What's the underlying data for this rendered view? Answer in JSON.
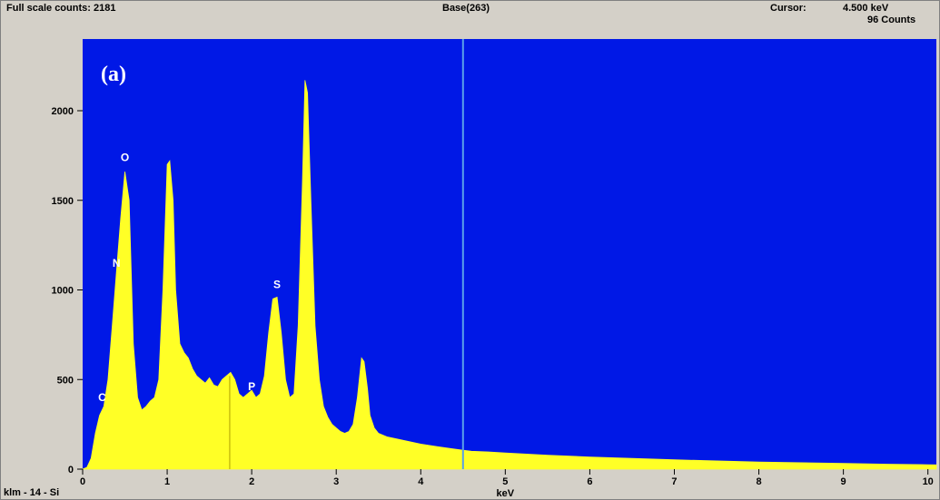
{
  "header": {
    "full_scale": "Full scale counts: 2181",
    "base": "Base(263)",
    "cursor_label": "Cursor:",
    "cursor_energy": "4.500 keV",
    "cursor_counts": "96 Counts"
  },
  "footer": {
    "sample": "klm - 14 - Si"
  },
  "colors": {
    "plot_background": "#0018e6",
    "spectrum_fill": "#ffff26",
    "cursor_line": "#5aa0e8",
    "frame": "#d4d0c8"
  },
  "chart_data": {
    "type": "area",
    "xlabel": "keV",
    "panel_label": "(a)",
    "xlim": [
      0,
      10.1
    ],
    "ylim": [
      0,
      2400
    ],
    "xticks": [
      0,
      1,
      2,
      3,
      4,
      5,
      6,
      7,
      8,
      9,
      10
    ],
    "yticks": [
      0,
      500,
      1000,
      1500,
      2000
    ],
    "cursor_x": 4.5,
    "marker_x": 1.74,
    "peak_labels": [
      {
        "text": "C",
        "x": 0.23,
        "y": 380
      },
      {
        "text": "O",
        "x": 0.5,
        "y": 1720
      },
      {
        "text": "N",
        "x": 0.4,
        "y": 1130
      },
      {
        "text": "S",
        "x": 2.3,
        "y": 1010
      },
      {
        "text": "P",
        "x": 2.0,
        "y": 440
      }
    ],
    "series": [
      {
        "x": [
          0.0,
          0.05,
          0.1,
          0.15,
          0.2,
          0.25,
          0.3,
          0.35,
          0.4,
          0.45,
          0.5,
          0.55,
          0.6,
          0.65,
          0.7,
          0.75,
          0.8,
          0.85,
          0.9,
          0.95,
          1.0,
          1.03,
          1.07,
          1.1,
          1.15,
          1.2,
          1.25,
          1.3,
          1.35,
          1.4,
          1.45,
          1.5,
          1.55,
          1.6,
          1.65,
          1.7,
          1.75,
          1.8,
          1.85,
          1.9,
          1.95,
          2.0,
          2.05,
          2.1,
          2.15,
          2.2,
          2.25,
          2.3,
          2.35,
          2.4,
          2.45,
          2.5,
          2.55,
          2.6,
          2.63,
          2.66,
          2.7,
          2.75,
          2.8,
          2.85,
          2.9,
          2.95,
          3.0,
          3.05,
          3.1,
          3.15,
          3.2,
          3.25,
          3.3,
          3.33,
          3.37,
          3.4,
          3.45,
          3.5,
          3.6,
          3.7,
          3.8,
          3.9,
          4.0,
          4.2,
          4.4,
          4.6,
          4.8,
          5.0,
          5.5,
          6.0,
          6.5,
          7.0,
          7.5,
          8.0,
          8.5,
          9.0,
          9.5,
          10.0,
          10.1
        ],
        "values": [
          0,
          10,
          60,
          200,
          300,
          350,
          500,
          800,
          1100,
          1400,
          1660,
          1500,
          700,
          400,
          330,
          350,
          380,
          400,
          500,
          1000,
          1700,
          1720,
          1500,
          1000,
          700,
          650,
          620,
          560,
          520,
          500,
          480,
          510,
          470,
          460,
          500,
          520,
          540,
          500,
          420,
          400,
          420,
          440,
          400,
          420,
          520,
          760,
          950,
          960,
          760,
          500,
          400,
          420,
          800,
          1600,
          2170,
          2100,
          1500,
          800,
          500,
          350,
          290,
          250,
          230,
          210,
          200,
          210,
          250,
          400,
          620,
          600,
          450,
          300,
          230,
          200,
          180,
          170,
          160,
          150,
          140,
          125,
          112,
          100,
          96,
          90,
          78,
          68,
          60,
          52,
          46,
          40,
          36,
          32,
          28,
          25,
          24
        ]
      }
    ]
  }
}
